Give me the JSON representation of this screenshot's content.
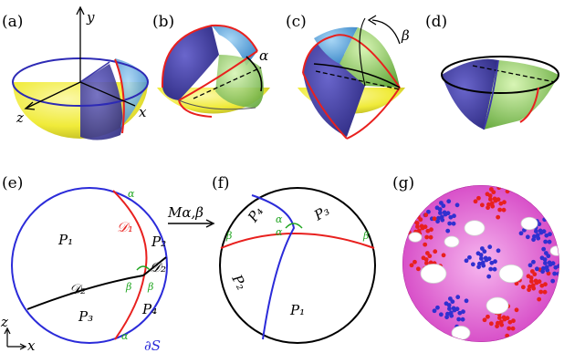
{
  "panels": {
    "a": "(a)",
    "b": "(b)",
    "c": "(c)",
    "d": "(d)",
    "e": "(e)",
    "f": "(f)",
    "g": "(g)"
  },
  "axes_a": {
    "y": "y",
    "x": "x",
    "z": "z"
  },
  "angles": {
    "alpha": "α",
    "beta": "β"
  },
  "panel_e": {
    "regions": [
      "P₁",
      "P₂",
      "P₃",
      "P₄"
    ],
    "curves": {
      "d1": "𝒟₁",
      "d2_left": "𝒟₂",
      "d2_right": "𝒟₂"
    },
    "boundary": "∂S",
    "small_angles": {
      "alpha_top": "α",
      "alpha_bottom": "α",
      "beta_left": "β",
      "beta_right": "β"
    },
    "axes": {
      "z": "z",
      "x": "x"
    }
  },
  "map_label": "Mα,β",
  "panel_f": {
    "regions": [
      "P₁",
      "P₂",
      "P₃",
      "P₄"
    ],
    "small_angles": {
      "alpha_up": "α",
      "alpha_down": "α",
      "beta_left": "β",
      "beta_right": "β"
    }
  },
  "colors": {
    "yellow": "#f2ee3c",
    "blue": "#3c37a8",
    "light_blue": "#4fa3e0",
    "green": "#8fca56",
    "red": "#e8201e",
    "black": "#000000",
    "angle_green": "#1fa51f",
    "pink": "#e23fd0"
  }
}
